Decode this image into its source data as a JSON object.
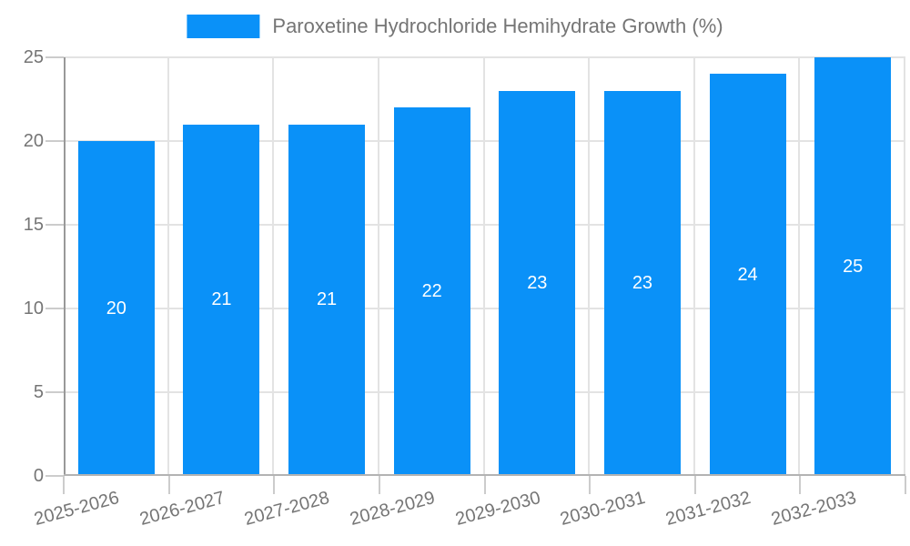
{
  "legend": {
    "label": "Paroxetine Hydrochloride Hemihydrate Growth (%)",
    "swatch_color": "#0a91f8"
  },
  "chart_data": {
    "type": "bar",
    "title": "Paroxetine Hydrochloride Hemihydrate Growth (%)",
    "categories": [
      "2025-2026",
      "2026-2027",
      "2027-2028",
      "2028-2029",
      "2029-2030",
      "2030-2031",
      "2031-2032",
      "2032-2033"
    ],
    "values": [
      20,
      21,
      21,
      22,
      23,
      23,
      24,
      25
    ],
    "ylim": [
      0,
      25
    ],
    "yticks": [
      0,
      5,
      10,
      15,
      20,
      25
    ],
    "grid": true,
    "legend_position": "top-center",
    "x_label_rotation_deg": -15,
    "bar_color": "#0a91f8",
    "bar_label_color": "#ffffff"
  },
  "colors": {
    "axis_text": "#757575",
    "grid_line": "#e3e3e3",
    "tick_line": "#cccccc",
    "y_axis_line": "#999999",
    "x_axis_line": "#b3b3b3",
    "background": "#ffffff"
  }
}
